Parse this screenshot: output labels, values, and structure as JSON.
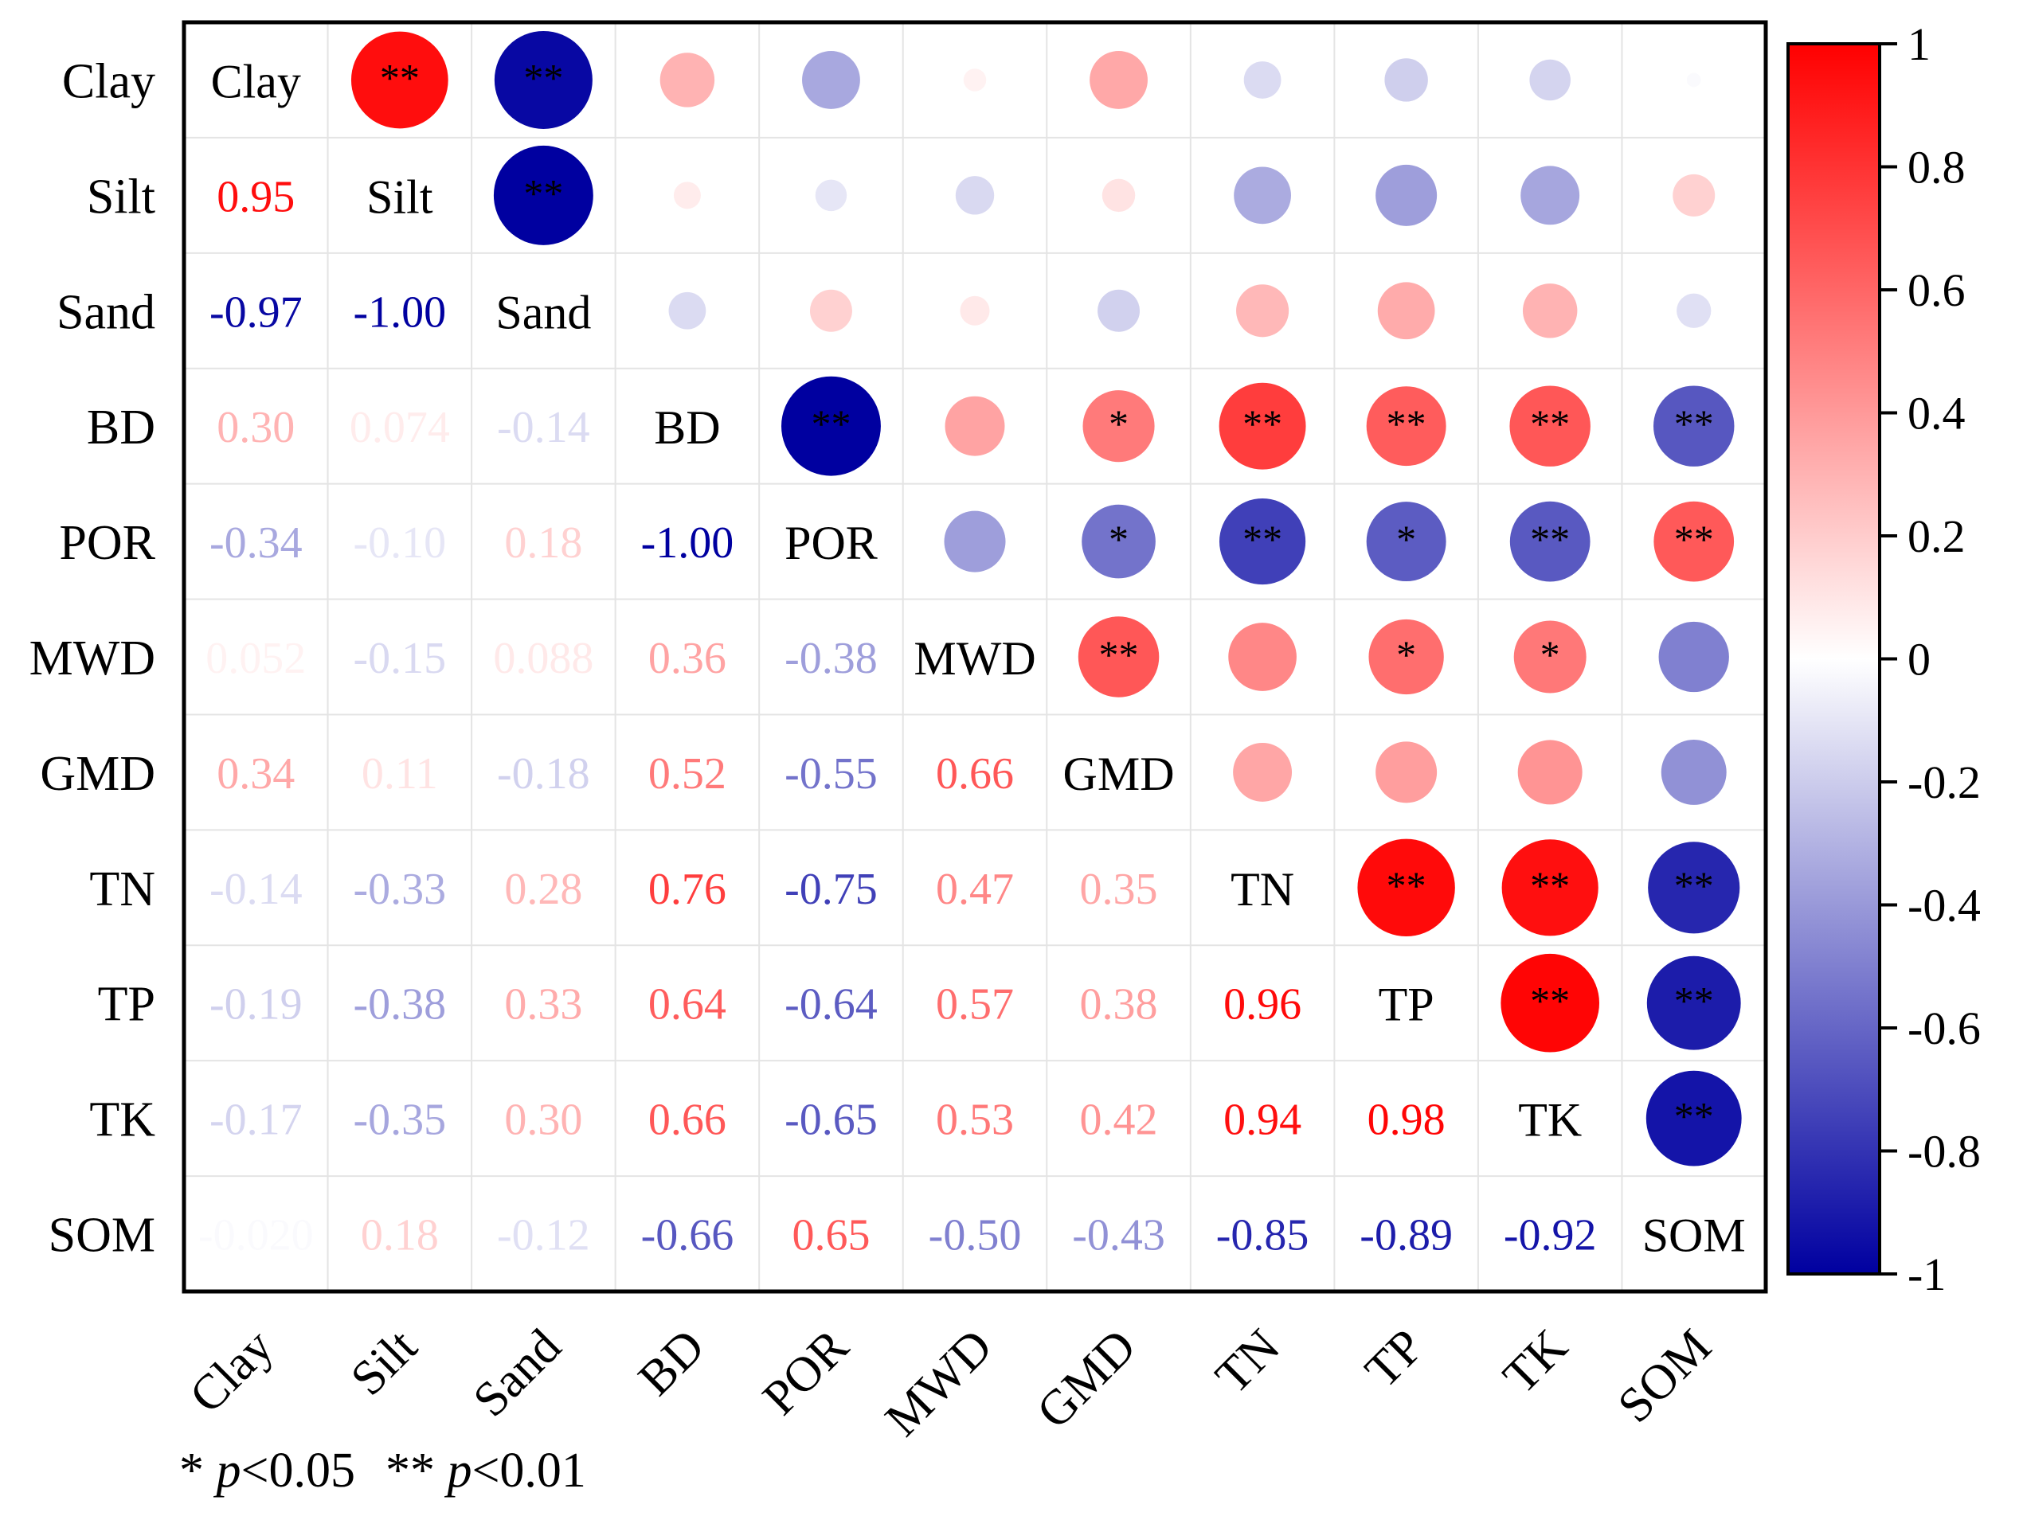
{
  "chart_data": {
    "type": "heatmap",
    "subtype": "correlation-matrix",
    "variables": [
      "Clay",
      "Silt",
      "Sand",
      "BD",
      "POR",
      "MWD",
      "GMD",
      "TN",
      "TP",
      "TK",
      "SOM"
    ],
    "matrix": [
      [
        1.0,
        0.95,
        -0.97,
        0.3,
        -0.34,
        0.052,
        0.34,
        -0.14,
        -0.19,
        -0.17,
        -0.02
      ],
      [
        0.95,
        1.0,
        -1.0,
        0.074,
        -0.1,
        -0.15,
        0.11,
        -0.33,
        -0.38,
        -0.35,
        0.18
      ],
      [
        -0.97,
        -1.0,
        1.0,
        -0.14,
        0.18,
        0.088,
        -0.18,
        0.28,
        0.33,
        0.3,
        -0.12
      ],
      [
        0.3,
        0.074,
        -0.14,
        1.0,
        -1.0,
        0.36,
        0.52,
        0.76,
        0.64,
        0.66,
        -0.66
      ],
      [
        -0.34,
        -0.1,
        0.18,
        -1.0,
        1.0,
        -0.38,
        -0.55,
        -0.75,
        -0.64,
        -0.65,
        0.65
      ],
      [
        0.052,
        -0.15,
        0.088,
        0.36,
        -0.38,
        1.0,
        0.66,
        0.47,
        0.57,
        0.53,
        -0.5
      ],
      [
        0.34,
        0.11,
        -0.18,
        0.52,
        -0.55,
        0.66,
        1.0,
        0.35,
        0.38,
        0.42,
        -0.43
      ],
      [
        -0.14,
        -0.33,
        0.28,
        0.76,
        -0.75,
        0.47,
        0.35,
        1.0,
        0.96,
        0.94,
        -0.85
      ],
      [
        -0.19,
        -0.38,
        0.33,
        0.64,
        -0.64,
        0.57,
        0.38,
        0.96,
        1.0,
        0.98,
        -0.89
      ],
      [
        -0.17,
        -0.35,
        0.3,
        0.66,
        -0.65,
        0.53,
        0.42,
        0.94,
        0.98,
        1.0,
        -0.92
      ],
      [
        -0.02,
        0.18,
        -0.12,
        -0.66,
        0.65,
        -0.5,
        -0.43,
        -0.85,
        -0.89,
        -0.92,
        1.0
      ]
    ],
    "value_labels": [
      [
        "",
        "",
        "",
        "",
        "",
        "",
        "",
        "",
        "",
        "",
        ""
      ],
      [
        "0.95",
        "",
        "",
        "",
        "",
        "",
        "",
        "",
        "",
        "",
        ""
      ],
      [
        "-0.97",
        "-1.00",
        "",
        "",
        "",
        "",
        "",
        "",
        "",
        "",
        ""
      ],
      [
        "0.30",
        "0.074",
        "-0.14",
        "",
        "",
        "",
        "",
        "",
        "",
        "",
        ""
      ],
      [
        "-0.34",
        "-0.10",
        "0.18",
        "-1.00",
        "",
        "",
        "",
        "",
        "",
        "",
        ""
      ],
      [
        "0.052",
        "-0.15",
        "0.088",
        "0.36",
        "-0.38",
        "",
        "",
        "",
        "",
        "",
        ""
      ],
      [
        "0.34",
        "0.11",
        "-0.18",
        "0.52",
        "-0.55",
        "0.66",
        "",
        "",
        "",
        "",
        ""
      ],
      [
        "-0.14",
        "-0.33",
        "0.28",
        "0.76",
        "-0.75",
        "0.47",
        "0.35",
        "",
        "",
        "",
        ""
      ],
      [
        "-0.19",
        "-0.38",
        "0.33",
        "0.64",
        "-0.64",
        "0.57",
        "0.38",
        "0.96",
        "",
        "",
        ""
      ],
      [
        "-0.17",
        "-0.35",
        "0.30",
        "0.66",
        "-0.65",
        "0.53",
        "0.42",
        "0.94",
        "0.98",
        "",
        ""
      ],
      [
        "-0.020",
        "0.18",
        "-0.12",
        "-0.66",
        "0.65",
        "-0.50",
        "-0.43",
        "-0.85",
        "-0.89",
        "-0.92",
        ""
      ]
    ],
    "significance": [
      [
        "",
        "**",
        "**",
        "",
        "",
        "",
        "",
        "",
        "",
        "",
        ""
      ],
      [
        "",
        "",
        "**",
        "",
        "",
        "",
        "",
        "",
        "",
        "",
        ""
      ],
      [
        "",
        "",
        "",
        "",
        "",
        "",
        "",
        "",
        "",
        "",
        ""
      ],
      [
        "",
        "",
        "",
        "",
        "**",
        "",
        "*",
        "**",
        "**",
        "**",
        "**"
      ],
      [
        "",
        "",
        "",
        "",
        "",
        "",
        "*",
        "**",
        "*",
        "**",
        "**"
      ],
      [
        "",
        "",
        "",
        "",
        "",
        "",
        "**",
        "",
        "*",
        "*",
        ""
      ],
      [
        "",
        "",
        "",
        "",
        "",
        "",
        "",
        "",
        "",
        "",
        ""
      ],
      [
        "",
        "",
        "",
        "",
        "",
        "",
        "",
        "",
        "**",
        "**",
        "**"
      ],
      [
        "",
        "",
        "",
        "",
        "",
        "",
        "",
        "",
        "",
        "**",
        "**"
      ],
      [
        "",
        "",
        "",
        "",
        "",
        "",
        "",
        "",
        "",
        "",
        "**"
      ],
      [
        "",
        "",
        "",
        "",
        "",
        "",
        "",
        "",
        "",
        "",
        ""
      ]
    ],
    "lower_triangle": "numbers",
    "upper_triangle": "circles",
    "diagonal": "variable names",
    "colorbar": {
      "range": [
        -1,
        1
      ],
      "ticks": [
        1,
        0.8,
        0.6,
        0.4,
        0.2,
        0,
        -0.2,
        -0.4,
        -0.6,
        -0.8,
        -1
      ],
      "tick_labels": [
        "1",
        "0.8",
        "0.6",
        "0.4",
        "0.2",
        "0",
        "-0.2",
        "-0.4",
        "-0.6",
        "-0.8",
        "-1"
      ],
      "colors": {
        "negative": "#0000a0",
        "zero": "#ffffff",
        "positive": "#ff0000"
      }
    },
    "legend_note": {
      "sig1_mark": "*",
      "sig1_p": "p",
      "sig1_thresh": "<0.05",
      "sig2_mark": "**",
      "sig2_p": "p",
      "sig2_thresh": "<0.01"
    }
  }
}
